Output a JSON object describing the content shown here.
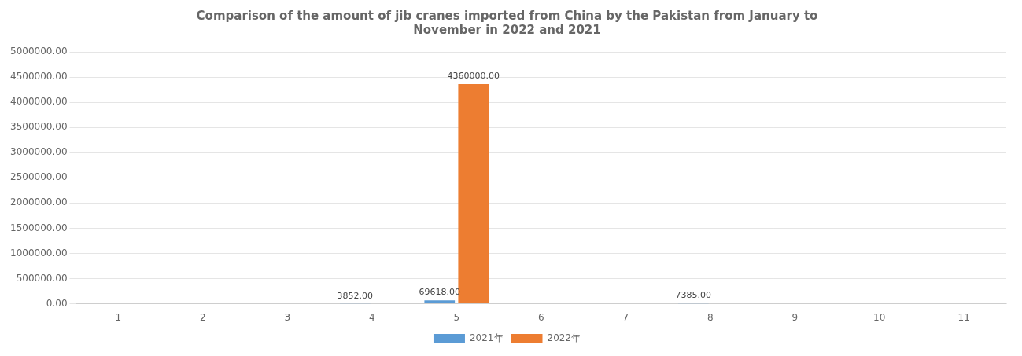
{
  "chart_data": {
    "type": "bar",
    "title": "Comparison of the amount of jib cranes imported from China by the Pakistan from January to\nNovember in 2022 and 2021",
    "categories": [
      "1",
      "2",
      "3",
      "4",
      "5",
      "6",
      "7",
      "8",
      "9",
      "10",
      "11"
    ],
    "series": [
      {
        "name": "2021年",
        "color": "#5B9BD5",
        "values": [
          0,
          0,
          0,
          3852,
          69618,
          0,
          0,
          7385,
          0,
          0,
          0
        ],
        "value_labels": [
          null,
          null,
          null,
          "3852.00",
          "69618.00",
          null,
          null,
          "7385.00",
          null,
          null,
          null
        ]
      },
      {
        "name": "2022年",
        "color": "#ED7D31",
        "values": [
          0,
          0,
          0,
          0,
          4360000,
          0,
          0,
          0,
          0,
          0,
          0
        ],
        "value_labels": [
          null,
          null,
          null,
          null,
          "4360000.00",
          null,
          null,
          null,
          null,
          null,
          null
        ]
      }
    ],
    "ylim": [
      0,
      5000000
    ],
    "yticks": [
      {
        "value": 0,
        "label": "0.00"
      },
      {
        "value": 500000,
        "label": "500000.00"
      },
      {
        "value": 1000000,
        "label": "1000000.00"
      },
      {
        "value": 1500000,
        "label": "1500000.00"
      },
      {
        "value": 2000000,
        "label": "2000000.00"
      },
      {
        "value": 2500000,
        "label": "2500000.00"
      },
      {
        "value": 3000000,
        "label": "3000000.00"
      },
      {
        "value": 3500000,
        "label": "3500000.00"
      },
      {
        "value": 4000000,
        "label": "4000000.00"
      },
      {
        "value": 4500000,
        "label": "4500000.00"
      },
      {
        "value": 5000000,
        "label": "5000000.00"
      }
    ],
    "grid": true,
    "legend": "bottom",
    "data_labels": true
  }
}
